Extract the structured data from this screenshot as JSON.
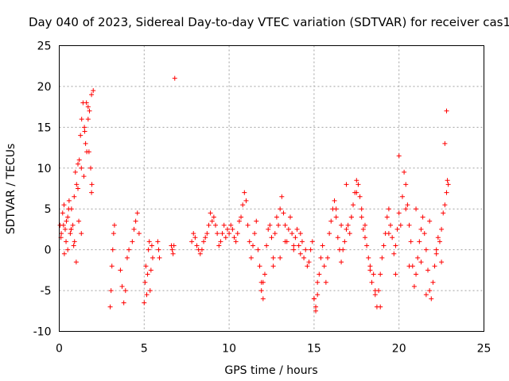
{
  "chart_data": {
    "type": "scatter",
    "title": "Day 040 of 2023, Sidereal Day-to-day VTEC variation (SDTVAR) for receiver cas1",
    "xlabel": "GPS time / hours",
    "ylabel": "SDTVAR / TECUs",
    "xlim": [
      0,
      25
    ],
    "ylim": [
      -10,
      25
    ],
    "xticks": [
      0,
      5,
      10,
      15,
      20,
      25
    ],
    "yticks": [
      -10,
      -5,
      0,
      5,
      10,
      15,
      20,
      25
    ],
    "xtick_labels": [
      "0",
      "5",
      "10",
      "15",
      "20",
      "25"
    ],
    "ytick_labels": [
      "-10",
      "-5",
      "0",
      "5",
      "10",
      "15",
      "20",
      "25"
    ],
    "grid": true,
    "marker": "+",
    "color": "#ff0000",
    "series": [
      {
        "name": "SDTVAR",
        "x": [
          0.05,
          0.12,
          0.2,
          0.28,
          0.35,
          0.42,
          0.5,
          0.58,
          0.65,
          0.72,
          0.8,
          0.88,
          0.95,
          1.02,
          1.1,
          1.18,
          1.25,
          1.32,
          1.4,
          1.48,
          1.55,
          1.62,
          1.7,
          1.78,
          1.85,
          1.92,
          2.0,
          0.1,
          0.25,
          0.4,
          0.55,
          0.7,
          0.85,
          1.0,
          1.15,
          1.3,
          1.45,
          1.6,
          1.75,
          1.9,
          0.3,
          0.5,
          0.7,
          0.9,
          1.1,
          1.3,
          1.5,
          1.7,
          1.9,
          3.0,
          3.05,
          3.1,
          3.15,
          3.2,
          3.25,
          3.6,
          3.7,
          3.8,
          3.9,
          4.0,
          4.1,
          4.3,
          4.4,
          4.5,
          4.6,
          4.7,
          5.0,
          5.05,
          5.1,
          5.15,
          5.2,
          5.25,
          5.3,
          5.35,
          5.4,
          5.45,
          5.5,
          5.8,
          5.85,
          5.9,
          6.6,
          6.65,
          6.7,
          6.75,
          6.8,
          7.8,
          7.9,
          8.0,
          8.1,
          8.2,
          8.3,
          8.4,
          8.5,
          8.6,
          8.7,
          8.8,
          8.9,
          9.0,
          9.1,
          9.2,
          9.3,
          9.4,
          9.5,
          9.6,
          9.7,
          9.8,
          9.9,
          10.0,
          10.1,
          10.2,
          10.3,
          10.4,
          10.5,
          10.6,
          10.7,
          10.8,
          10.9,
          11.0,
          11.1,
          11.2,
          11.3,
          11.4,
          11.5,
          11.6,
          11.7,
          11.8,
          11.9,
          12.0,
          12.1,
          12.2,
          12.3,
          12.4,
          12.5,
          12.6,
          12.7,
          12.8,
          12.9,
          13.0,
          13.1,
          13.2,
          13.3,
          13.4,
          13.5,
          13.6,
          13.7,
          13.8,
          13.9,
          14.0,
          14.1,
          14.2,
          14.3,
          14.4,
          14.5,
          14.6,
          14.7,
          14.8,
          14.9,
          15.0,
          15.1,
          15.2,
          15.3,
          15.4,
          15.5,
          15.6,
          15.7,
          15.8,
          15.9,
          16.0,
          16.1,
          16.2,
          16.3,
          16.4,
          16.5,
          16.6,
          16.7,
          16.8,
          16.9,
          17.0,
          17.1,
          17.2,
          17.3,
          17.4,
          17.5,
          17.6,
          17.7,
          17.8,
          17.9,
          18.0,
          18.1,
          18.2,
          18.3,
          18.4,
          18.5,
          18.6,
          18.7,
          18.8,
          18.9,
          19.0,
          19.1,
          19.2,
          19.3,
          19.4,
          19.5,
          19.6,
          19.7,
          19.8,
          19.9,
          20.0,
          20.1,
          20.2,
          20.3,
          20.4,
          20.5,
          20.6,
          20.7,
          20.8,
          20.9,
          21.0,
          21.1,
          21.2,
          21.3,
          21.4,
          21.5,
          21.6,
          21.7,
          21.8,
          21.9,
          22.0,
          22.1,
          22.2,
          22.3,
          22.4,
          22.5,
          22.6,
          22.7,
          22.8,
          22.85,
          22.9,
          11.9,
          12.0,
          12.6,
          13.0,
          13.3,
          13.8,
          14.2,
          15.0,
          15.1,
          15.2,
          16.3,
          16.6,
          16.9,
          17.2,
          17.5,
          17.8,
          18.0,
          18.3,
          18.6,
          18.9,
          19.4,
          19.8,
          20.0,
          20.4,
          20.6,
          21.0,
          21.3,
          21.6,
          21.8,
          22.2,
          22.5,
          22.7,
          22.8
        ],
        "y": [
          3.0,
          2.0,
          4.5,
          5.5,
          2.5,
          3.5,
          4.0,
          6.0,
          2.0,
          5.0,
          3.0,
          6.5,
          9.5,
          8.0,
          10.5,
          11.0,
          14.0,
          16.0,
          18.0,
          15.0,
          13.0,
          12.0,
          16.0,
          17.0,
          10.0,
          8.0,
          19.5,
          1.5,
          3.0,
          1.0,
          5.0,
          2.5,
          0.5,
          -1.5,
          3.5,
          2.0,
          9.0,
          18.0,
          12.0,
          7.0,
          -0.5,
          0.0,
          2.5,
          1.0,
          7.5,
          10.0,
          14.5,
          17.5,
          19.0,
          -7.0,
          -5.0,
          -2.0,
          0.0,
          2.0,
          3.0,
          -2.5,
          -4.5,
          -6.5,
          -5.0,
          -1.0,
          0.0,
          1.0,
          2.5,
          3.5,
          4.5,
          2.0,
          -6.5,
          -4.0,
          -2.0,
          -5.5,
          -3.0,
          0.0,
          1.0,
          -5.0,
          -2.5,
          0.5,
          -1.0,
          1.0,
          0.0,
          -1.0,
          0.5,
          0.0,
          -0.5,
          0.5,
          21.0,
          1.0,
          2.0,
          1.5,
          0.5,
          0.0,
          -0.5,
          0.0,
          1.0,
          1.5,
          2.0,
          3.0,
          4.5,
          3.5,
          4.0,
          3.0,
          2.0,
          0.5,
          1.0,
          2.0,
          3.0,
          1.5,
          2.5,
          2.0,
          3.0,
          2.5,
          1.5,
          1.0,
          2.0,
          3.5,
          4.0,
          5.5,
          7.0,
          6.0,
          3.0,
          1.0,
          -1.0,
          0.5,
          2.0,
          3.5,
          0.0,
          -2.0,
          -4.0,
          -6.0,
          -3.0,
          0.5,
          2.5,
          3.0,
          1.5,
          -1.0,
          2.0,
          4.0,
          3.0,
          5.0,
          6.5,
          4.5,
          3.0,
          1.0,
          2.5,
          4.0,
          2.0,
          0.5,
          1.5,
          2.5,
          0.5,
          -0.5,
          1.0,
          -1.0,
          0.0,
          -2.0,
          -1.5,
          0.0,
          1.0,
          -6.0,
          -7.0,
          -5.5,
          -3.0,
          -1.0,
          0.5,
          -2.0,
          -4.0,
          -1.0,
          2.0,
          3.5,
          5.0,
          6.0,
          4.0,
          1.5,
          0.0,
          -1.5,
          0.0,
          1.0,
          2.5,
          3.0,
          2.0,
          4.0,
          5.5,
          7.0,
          8.5,
          8.0,
          6.5,
          4.0,
          2.5,
          1.5,
          0.5,
          -1.0,
          -2.5,
          -4.0,
          -3.0,
          -5.5,
          -7.0,
          -5.0,
          -3.0,
          -1.0,
          0.5,
          2.0,
          4.0,
          5.0,
          3.0,
          1.5,
          -0.5,
          0.5,
          2.5,
          4.5,
          3.0,
          6.5,
          9.5,
          8.0,
          5.5,
          3.0,
          1.0,
          -2.0,
          -4.5,
          -3.0,
          -1.0,
          1.0,
          2.5,
          4.0,
          2.0,
          0.0,
          -2.5,
          -5.0,
          -6.0,
          -4.0,
          -2.0,
          0.0,
          1.5,
          1.0,
          2.5,
          4.5,
          5.5,
          7.0,
          8.5,
          8.0,
          -5.0,
          -4.0,
          -2.0,
          -1.0,
          1.0,
          0.0,
          2.0,
          -6.0,
          -7.5,
          -4.0,
          5.0,
          3.0,
          8.0,
          4.0,
          7.0,
          5.0,
          3.0,
          -2.0,
          -5.0,
          -7.0,
          2.0,
          -3.0,
          11.5,
          5.0,
          -2.0,
          5.0,
          -1.5,
          -5.5,
          3.5,
          -0.5,
          -1.5,
          13.0,
          17.0
        ]
      }
    ]
  }
}
